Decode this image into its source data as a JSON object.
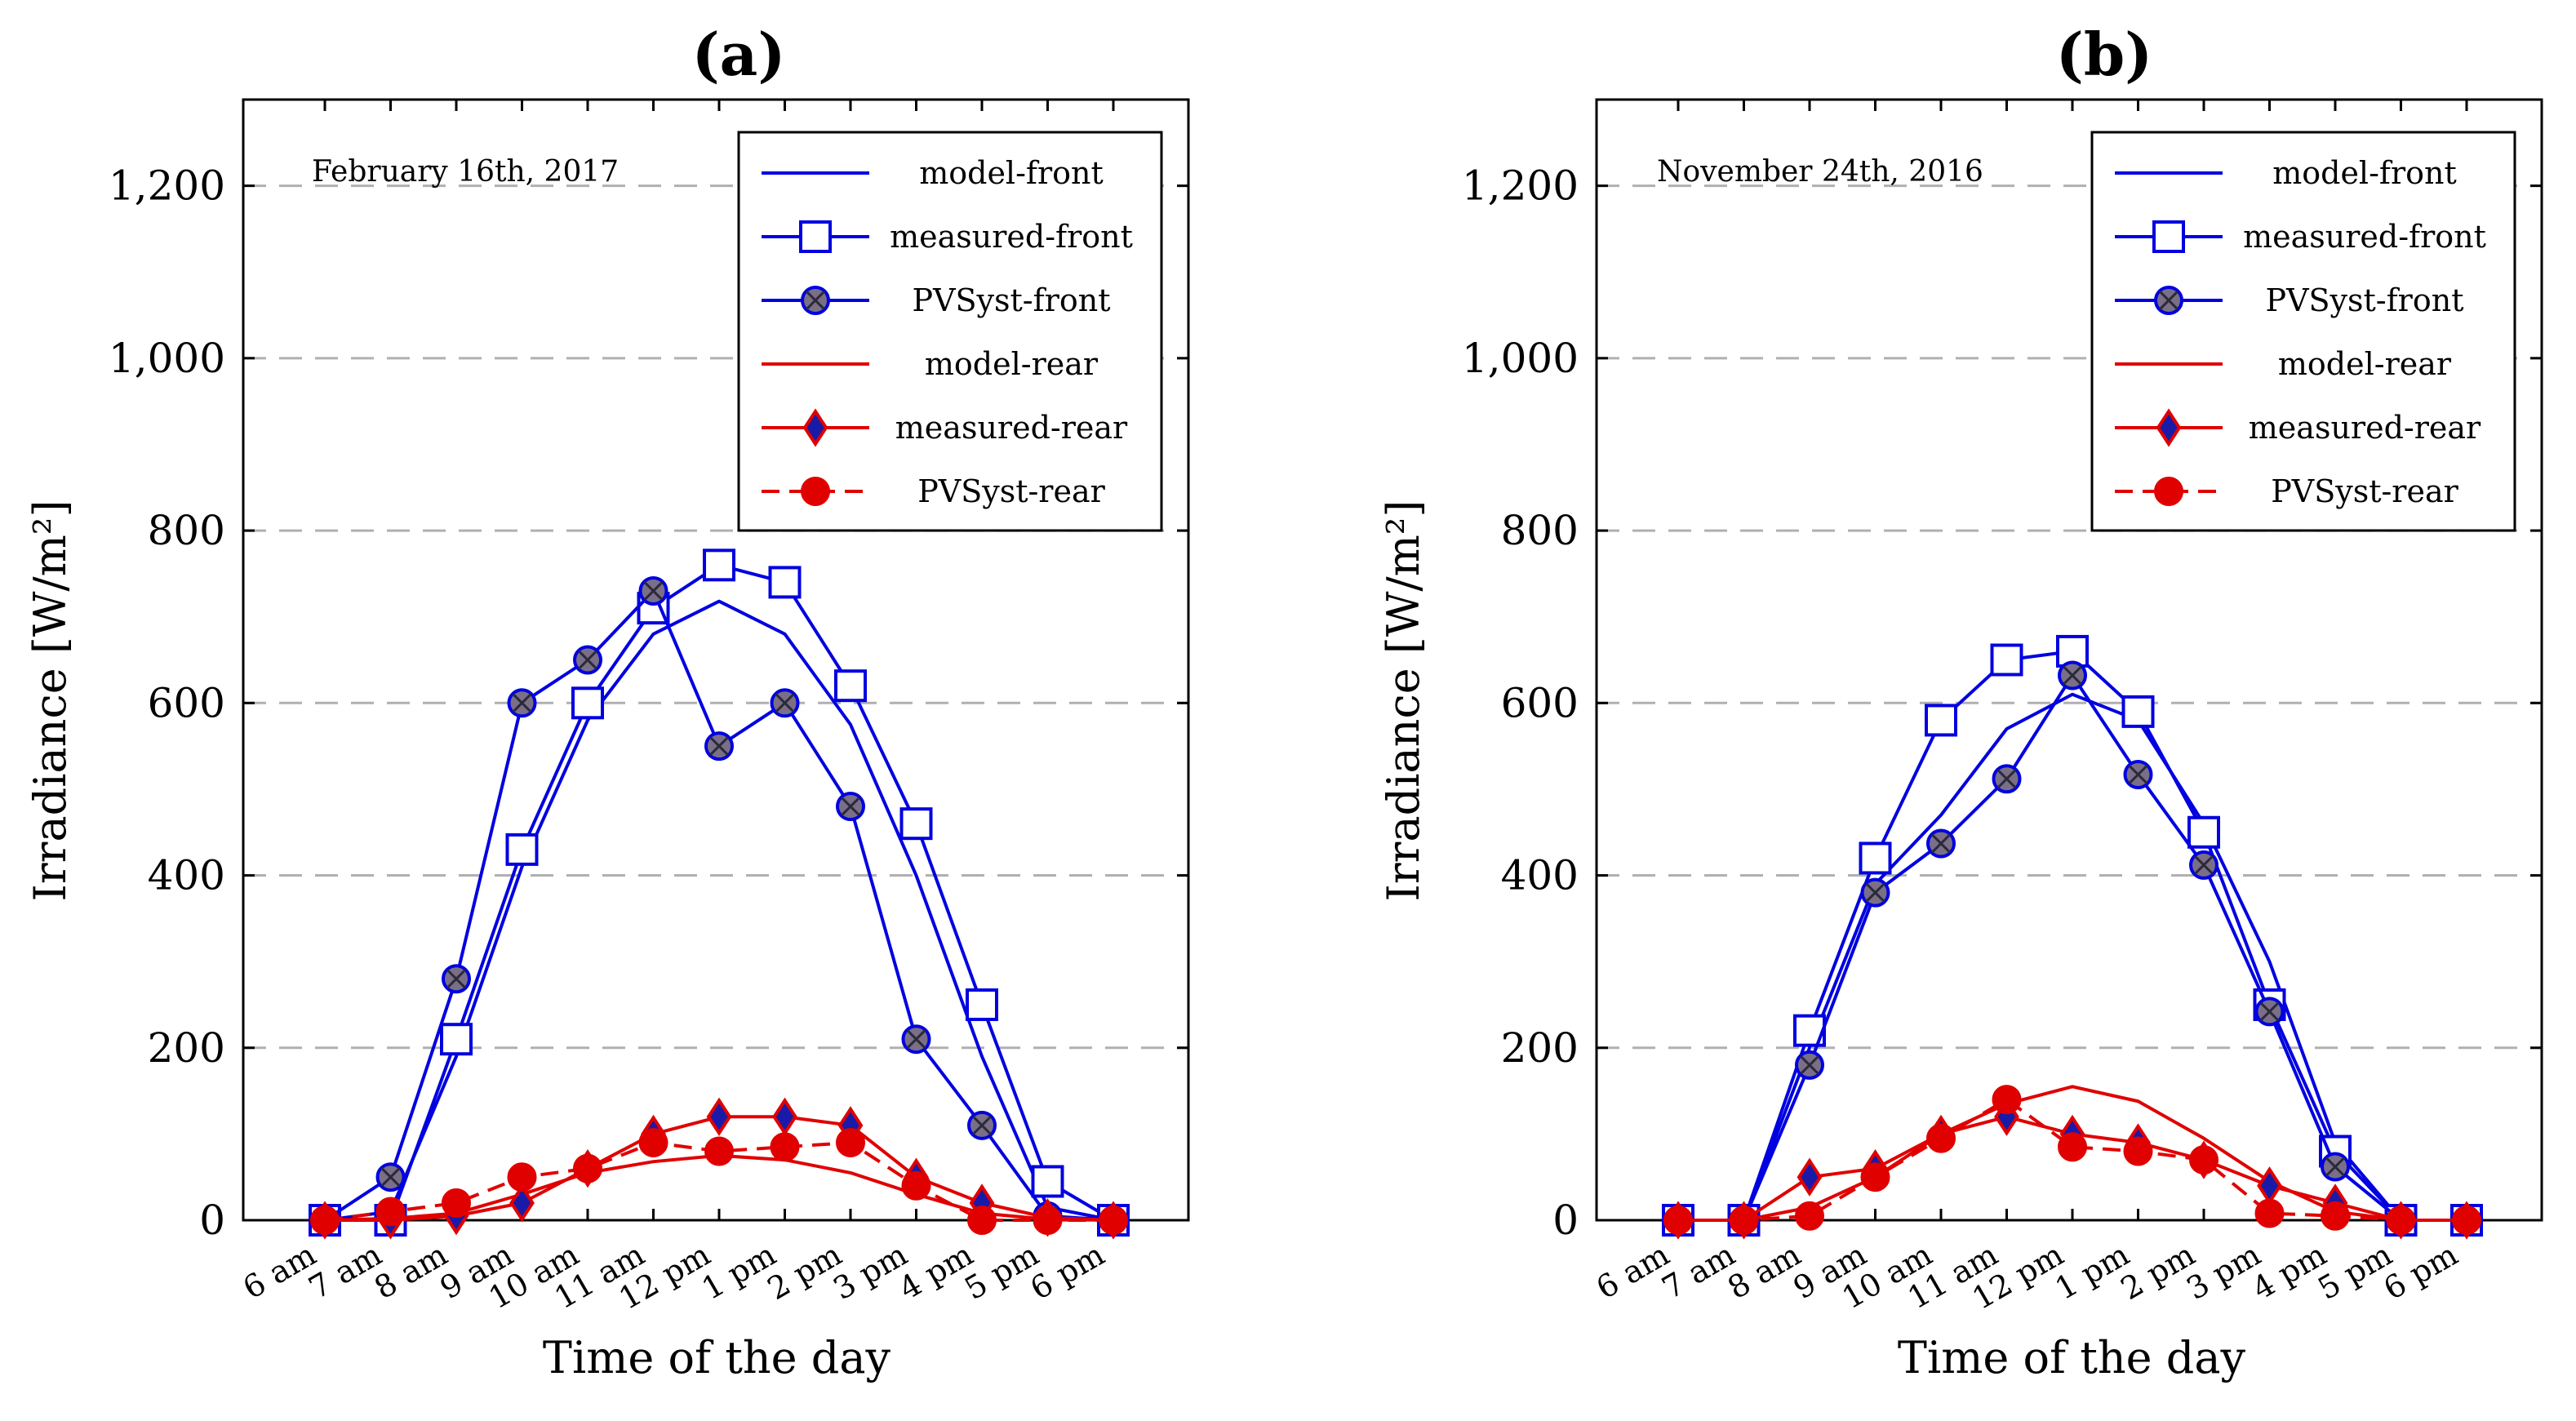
{
  "chart_data": [
    {
      "type": "line",
      "panel_label": "(a)",
      "annotation": "February 16th, 2017",
      "title": "",
      "xlabel": "Time of the day",
      "ylabel": "Irradiance [W/m²]",
      "ylim": [
        0,
        1300
      ],
      "yticks": [
        0,
        200,
        400,
        600,
        800,
        1000,
        1200
      ],
      "ytick_labels": [
        "0",
        "200",
        "400",
        "600",
        "800",
        "1,000",
        "1,200"
      ],
      "grid": "horizontal-dashed",
      "legend_position": "top-right",
      "categories": [
        "6 am",
        "7 am",
        "8 am",
        "9 am",
        "10 am",
        "11 am",
        "12 pm",
        "1 pm",
        "2 pm",
        "3 pm",
        "4 pm",
        "5 pm",
        "6 pm"
      ],
      "series": [
        {
          "name": "model-front",
          "color": "#0000e0",
          "marker": "none",
          "dash": "solid",
          "values": [
            0,
            10,
            190,
            410,
            580,
            680,
            718,
            680,
            575,
            400,
            190,
            15,
            0
          ]
        },
        {
          "name": "measured-front",
          "color": "#0000e0",
          "marker": "square-open",
          "dash": "solid",
          "values": [
            0,
            0,
            210,
            430,
            600,
            710,
            760,
            740,
            620,
            460,
            250,
            45,
            0
          ]
        },
        {
          "name": "PVSyst-front",
          "color": "#0000e0",
          "marker": "circle-cross",
          "dash": "solid",
          "values": [
            0,
            50,
            280,
            600,
            650,
            730,
            550,
            600,
            480,
            210,
            110,
            5,
            0
          ]
        },
        {
          "name": "model-rear",
          "color": "#e00000",
          "marker": "none",
          "dash": "solid",
          "values": [
            0,
            2,
            8,
            30,
            55,
            68,
            75,
            70,
            55,
            30,
            8,
            1,
            0
          ]
        },
        {
          "name": "measured-rear",
          "color": "#e00000",
          "marker": "diamond",
          "dash": "solid",
          "values": [
            0,
            0,
            5,
            20,
            60,
            100,
            120,
            120,
            110,
            50,
            20,
            3,
            0
          ]
        },
        {
          "name": "PVSyst-rear",
          "color": "#e00000",
          "marker": "circle-filled",
          "dash": "dashed",
          "values": [
            0,
            10,
            20,
            50,
            60,
            90,
            80,
            85,
            90,
            40,
            0,
            0,
            0
          ]
        }
      ]
    },
    {
      "type": "line",
      "panel_label": "(b)",
      "annotation": "November 24th, 2016",
      "title": "",
      "xlabel": "Time of the day",
      "ylabel": "Irradiance [W/m²]",
      "ylim": [
        0,
        1300
      ],
      "yticks": [
        0,
        200,
        400,
        600,
        800,
        1000,
        1200
      ],
      "ytick_labels": [
        "0",
        "200",
        "400",
        "600",
        "800",
        "1,000",
        "1,200"
      ],
      "grid": "horizontal-dashed",
      "legend_position": "top-right",
      "categories": [
        "6 am",
        "7 am",
        "8 am",
        "9 am",
        "10 am",
        "11 am",
        "12 pm",
        "1 pm",
        "2 pm",
        "3 pm",
        "4 pm",
        "5 pm",
        "6 pm"
      ],
      "series": [
        {
          "name": "model-front",
          "color": "#0000e0",
          "marker": "none",
          "dash": "solid",
          "values": [
            0,
            0,
            200,
            390,
            470,
            570,
            610,
            580,
            460,
            300,
            90,
            0,
            0
          ]
        },
        {
          "name": "measured-front",
          "color": "#0000e0",
          "marker": "square-open",
          "dash": "solid",
          "values": [
            0,
            0,
            220,
            420,
            580,
            650,
            660,
            590,
            450,
            250,
            80,
            0,
            0
          ]
        },
        {
          "name": "PVSyst-front",
          "color": "#0000e0",
          "marker": "circle-cross",
          "dash": "solid",
          "values": [
            0,
            0,
            180,
            380,
            437,
            512,
            632,
            517,
            412,
            242,
            62,
            0,
            0
          ]
        },
        {
          "name": "model-rear",
          "color": "#e00000",
          "marker": "none",
          "dash": "solid",
          "values": [
            0,
            0,
            15,
            50,
            100,
            135,
            155,
            138,
            95,
            45,
            10,
            0,
            0
          ]
        },
        {
          "name": "measured-rear",
          "color": "#e00000",
          "marker": "diamond",
          "dash": "solid",
          "values": [
            0,
            0,
            50,
            60,
            100,
            120,
            100,
            90,
            70,
            40,
            20,
            0,
            0
          ]
        },
        {
          "name": "PVSyst-rear",
          "color": "#e00000",
          "marker": "circle-filled",
          "dash": "dashed",
          "values": [
            0,
            0,
            5,
            50,
            95,
            140,
            85,
            80,
            70,
            8,
            5,
            0,
            0
          ]
        }
      ]
    }
  ]
}
